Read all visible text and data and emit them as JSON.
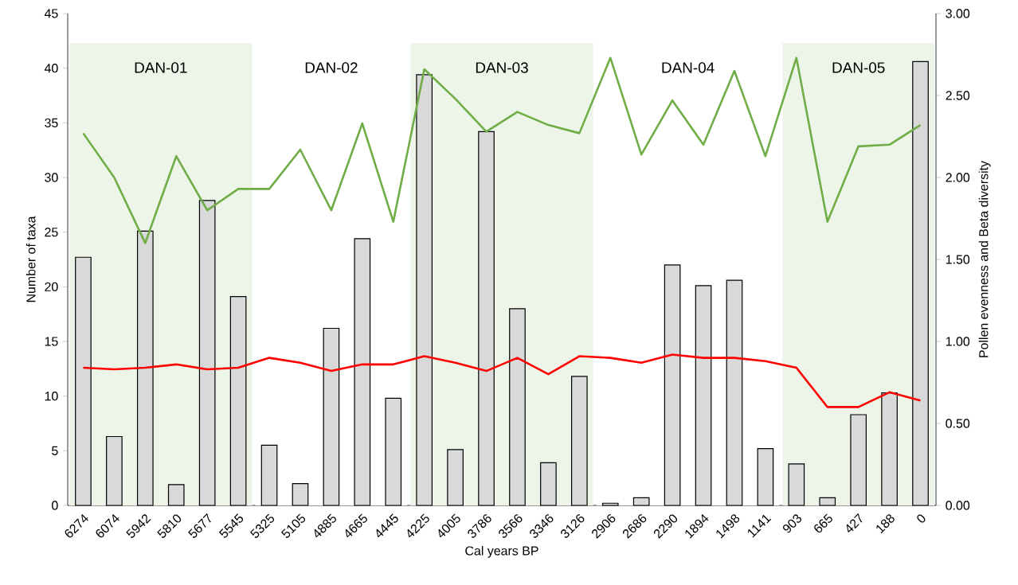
{
  "chart_data": {
    "type": "bar",
    "xlabel": "Cal years BP",
    "ylabel": "Number of taxa",
    "y2label": "Pollen evenness and Beta diversity",
    "categories": [
      "6274",
      "6074",
      "5942",
      "5810",
      "5677",
      "5545",
      "5325",
      "5105",
      "4885",
      "4665",
      "4445",
      "4225",
      "4005",
      "3786",
      "3566",
      "3346",
      "3126",
      "2906",
      "2686",
      "2290",
      "1894",
      "1498",
      "1141",
      "903",
      "665",
      "427",
      "188",
      "0"
    ],
    "series": [
      {
        "color": "#d9d9d9",
        "values": [
          22.7,
          6.3,
          25.1,
          1.9,
          27.9,
          19.1,
          5.5,
          2.0,
          16.2,
          24.4,
          9.8,
          39.4,
          5.1,
          34.2,
          18.0,
          3.9,
          11.8,
          0.2,
          0.7,
          22.0,
          20.1,
          20.6,
          5.2,
          3.8,
          0.7,
          8.3,
          10.3,
          40.6
        ]
      },
      {
        "type": "line",
        "axis": "y2",
        "color": "#70ad47",
        "values": [
          2.27,
          2.0,
          1.6,
          2.13,
          1.8,
          1.93,
          1.93,
          2.17,
          1.8,
          2.33,
          1.73,
          2.66,
          2.48,
          2.28,
          2.4,
          2.32,
          2.27,
          2.73,
          2.14,
          2.47,
          2.2,
          2.65,
          2.13,
          2.73,
          1.73,
          2.19,
          2.2,
          2.32
        ]
      },
      {
        "type": "line",
        "axis": "y2",
        "color": "#ff0000",
        "values": [
          0.84,
          0.83,
          0.84,
          0.86,
          0.83,
          0.84,
          0.9,
          0.87,
          0.82,
          0.86,
          0.86,
          0.91,
          0.87,
          0.82,
          0.9,
          0.8,
          0.91,
          0.9,
          0.87,
          0.92,
          0.9,
          0.9,
          0.88,
          0.84,
          0.6,
          0.6,
          0.69,
          0.64
        ]
      }
    ],
    "ylim": [
      0,
      45
    ],
    "yticks": [
      0,
      5,
      10,
      15,
      20,
      25,
      30,
      35,
      40,
      45
    ],
    "y2lim": [
      0,
      3
    ],
    "y2ticks": [
      {
        "value": 0,
        "label": "0.00"
      },
      {
        "value": 0.5,
        "label": "0.50"
      },
      {
        "value": 1,
        "label": "1.00"
      },
      {
        "value": 1.5,
        "label": "1.50"
      },
      {
        "value": 2,
        "label": "2.00"
      },
      {
        "value": 2.5,
        "label": "2.50"
      },
      {
        "value": 3,
        "label": "3.00"
      }
    ],
    "bands": [
      {
        "axis": "x",
        "from": "6274",
        "to": "5545",
        "label": "DAN-01",
        "color": "#edf5e8"
      },
      {
        "axis": "x",
        "from": "5325",
        "to": "4445",
        "label": "DAN-02",
        "color": "#ffffff"
      },
      {
        "axis": "x",
        "from": "4225",
        "to": "3126",
        "label": "DAN-03",
        "color": "#edf5e8"
      },
      {
        "axis": "x",
        "from": "2906",
        "to": "1141",
        "label": "DAN-04",
        "color": "#ffffff"
      },
      {
        "axis": "x",
        "from": "903",
        "to": "0",
        "label": "DAN-05",
        "color": "#edf5e8"
      }
    ],
    "marker": "none",
    "line_style": "solid"
  }
}
